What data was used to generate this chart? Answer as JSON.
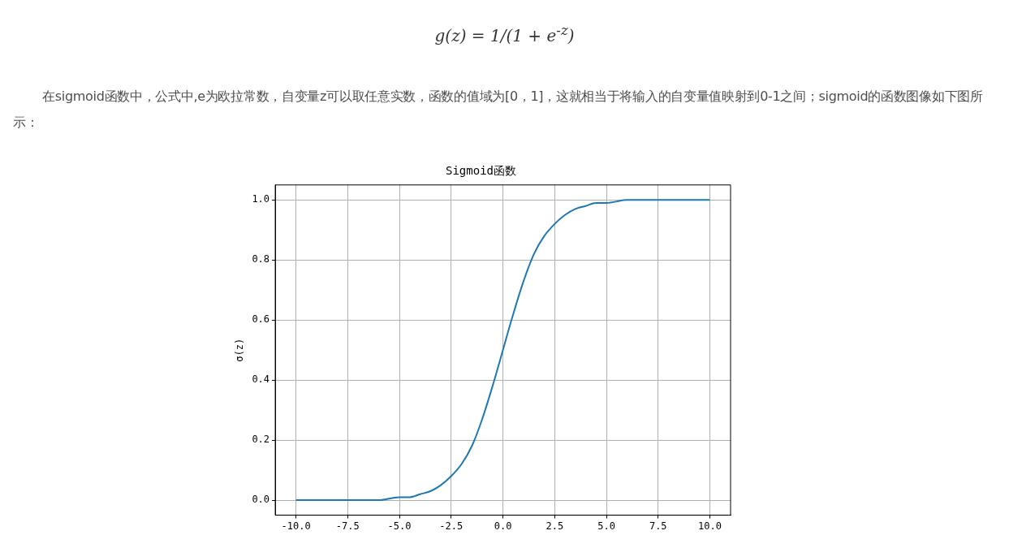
{
  "chart_data": {
    "type": "line",
    "title": "Sigmoid函数",
    "ylabel": "σ(z)",
    "annotations": [
      "g(z) = 1/(1 + e$^{-z}$)",
      "在sigmoid函数中，公式中,e为欧拉常数，自变量z可以取任意实数，函数的值域为[0，1]，这就相当于将输入的自变量值映射到0-1之间；sigmoid的函数图像如下图所示："
    ],
    "x": [
      -10,
      -9,
      -8,
      -7,
      -6,
      -5,
      -4.5,
      -4,
      -3.5,
      -3,
      -2.5,
      -2,
      -1.5,
      -1,
      -0.5,
      0,
      0.5,
      1,
      1.5,
      2,
      2.5,
      3,
      3.5,
      4,
      4.5,
      5,
      6,
      7,
      8,
      9,
      10
    ],
    "series": [
      {
        "color": "#1f77b4",
        "values": [
          0,
          0,
          0,
          0,
          0,
          0.01,
          0.01,
          0.02,
          0.03,
          0.05,
          0.08,
          0.12,
          0.18,
          0.27,
          0.38,
          0.5,
          0.62,
          0.73,
          0.82,
          0.88,
          0.92,
          0.95,
          0.97,
          0.98,
          0.99,
          0.99,
          1,
          1,
          1,
          1,
          1
        ]
      }
    ],
    "xlim": [
      -11,
      11
    ],
    "ylim": [
      -0.05,
      1.05
    ],
    "xticks": [
      {
        "value": -10,
        "label": "-10.0"
      },
      -7.5,
      {
        "value": -5,
        "label": "-5.0"
      },
      -2.5,
      {
        "value": 0,
        "label": "0.0"
      },
      2.5,
      {
        "value": 5,
        "label": "5.0"
      },
      7.5,
      {
        "value": 10,
        "label": "10.0"
      }
    ],
    "yticks": [
      {
        "value": 0,
        "label": "0.0"
      },
      0.2,
      0.4,
      0.6,
      0.8,
      {
        "value": 1,
        "label": "1.0"
      }
    ],
    "grid": true,
    "legend": false,
    "marker": "none",
    "line_style": "solid"
  }
}
